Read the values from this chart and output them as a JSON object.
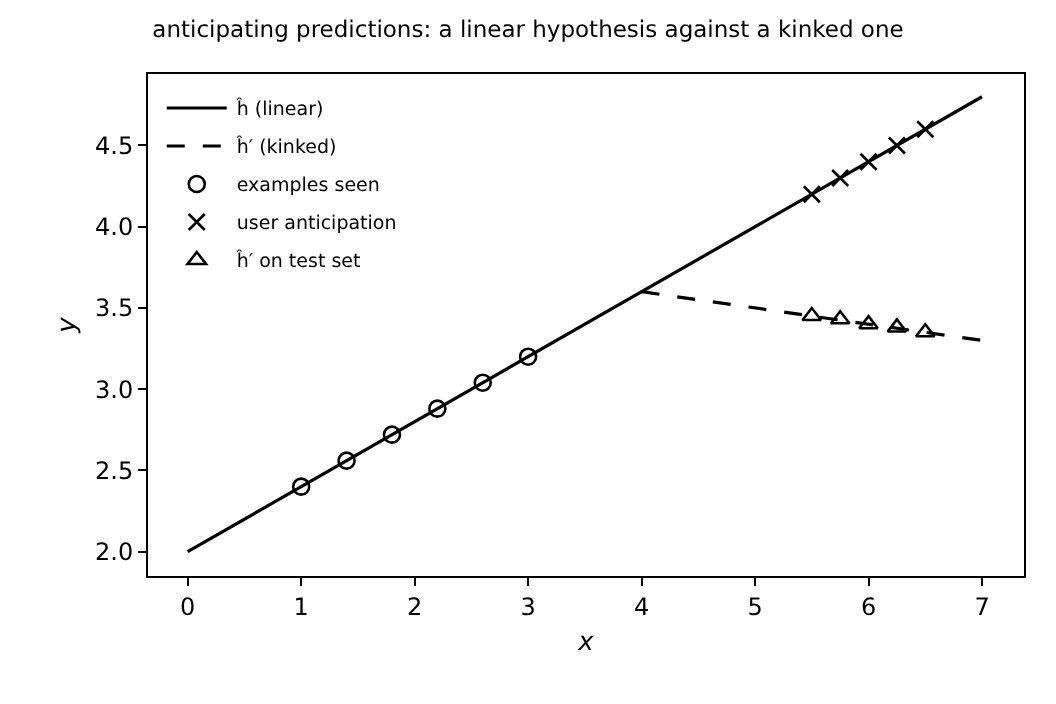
{
  "chart_data": {
    "type": "line",
    "title": "anticipating predictions: a linear hypothesis against a kinked one",
    "xlabel": "x",
    "ylabel": "y",
    "xlim": [
      -0.35,
      7.37
    ],
    "ylim": [
      1.85,
      4.94
    ],
    "xticks": [
      0,
      1,
      2,
      3,
      4,
      5,
      6,
      7
    ],
    "yticks": [
      {
        "value": 2.0,
        "label": "2.0"
      },
      {
        "value": 2.5,
        "label": "2.5"
      },
      {
        "value": 3.0,
        "label": "3.0"
      },
      {
        "value": 3.5,
        "label": "3.5"
      },
      {
        "value": 4.0,
        "label": "4.0"
      },
      {
        "value": 4.5,
        "label": "4.5"
      }
    ],
    "grid": false,
    "legend": "top left",
    "series": [
      {
        "name": "ĥ (linear)",
        "color": "#000000",
        "line_style": "solid",
        "marker": "none",
        "x": [
          0,
          7
        ],
        "values": [
          2.0,
          4.8
        ]
      },
      {
        "name": "ĥ′ (kinked)",
        "color": "#000000",
        "line_style": "dashed",
        "marker": "none",
        "x": [
          4,
          7
        ],
        "values": [
          3.6,
          3.3
        ]
      },
      {
        "name": "examples seen",
        "type": "scatter",
        "color": "#000000",
        "marker": "circle",
        "x": [
          1,
          1.4,
          1.8,
          2.2,
          2.6,
          3.0
        ],
        "values": [
          2.4,
          2.56,
          2.72,
          2.88,
          3.04,
          3.2
        ]
      },
      {
        "name": "user anticipation",
        "type": "scatter",
        "color": "#000000",
        "marker": "cross",
        "x": [
          5.5,
          5.75,
          6,
          6.25,
          6.5
        ],
        "values": [
          4.2,
          4.3,
          4.4,
          4.5,
          4.6
        ]
      },
      {
        "name": "ĥ′ on test set",
        "type": "scatter",
        "color": "#000000",
        "marker": "triangle",
        "x": [
          5.5,
          5.75,
          6,
          6.25,
          6.5
        ],
        "values": [
          3.45,
          3.43,
          3.4,
          3.38,
          3.35
        ]
      }
    ]
  }
}
